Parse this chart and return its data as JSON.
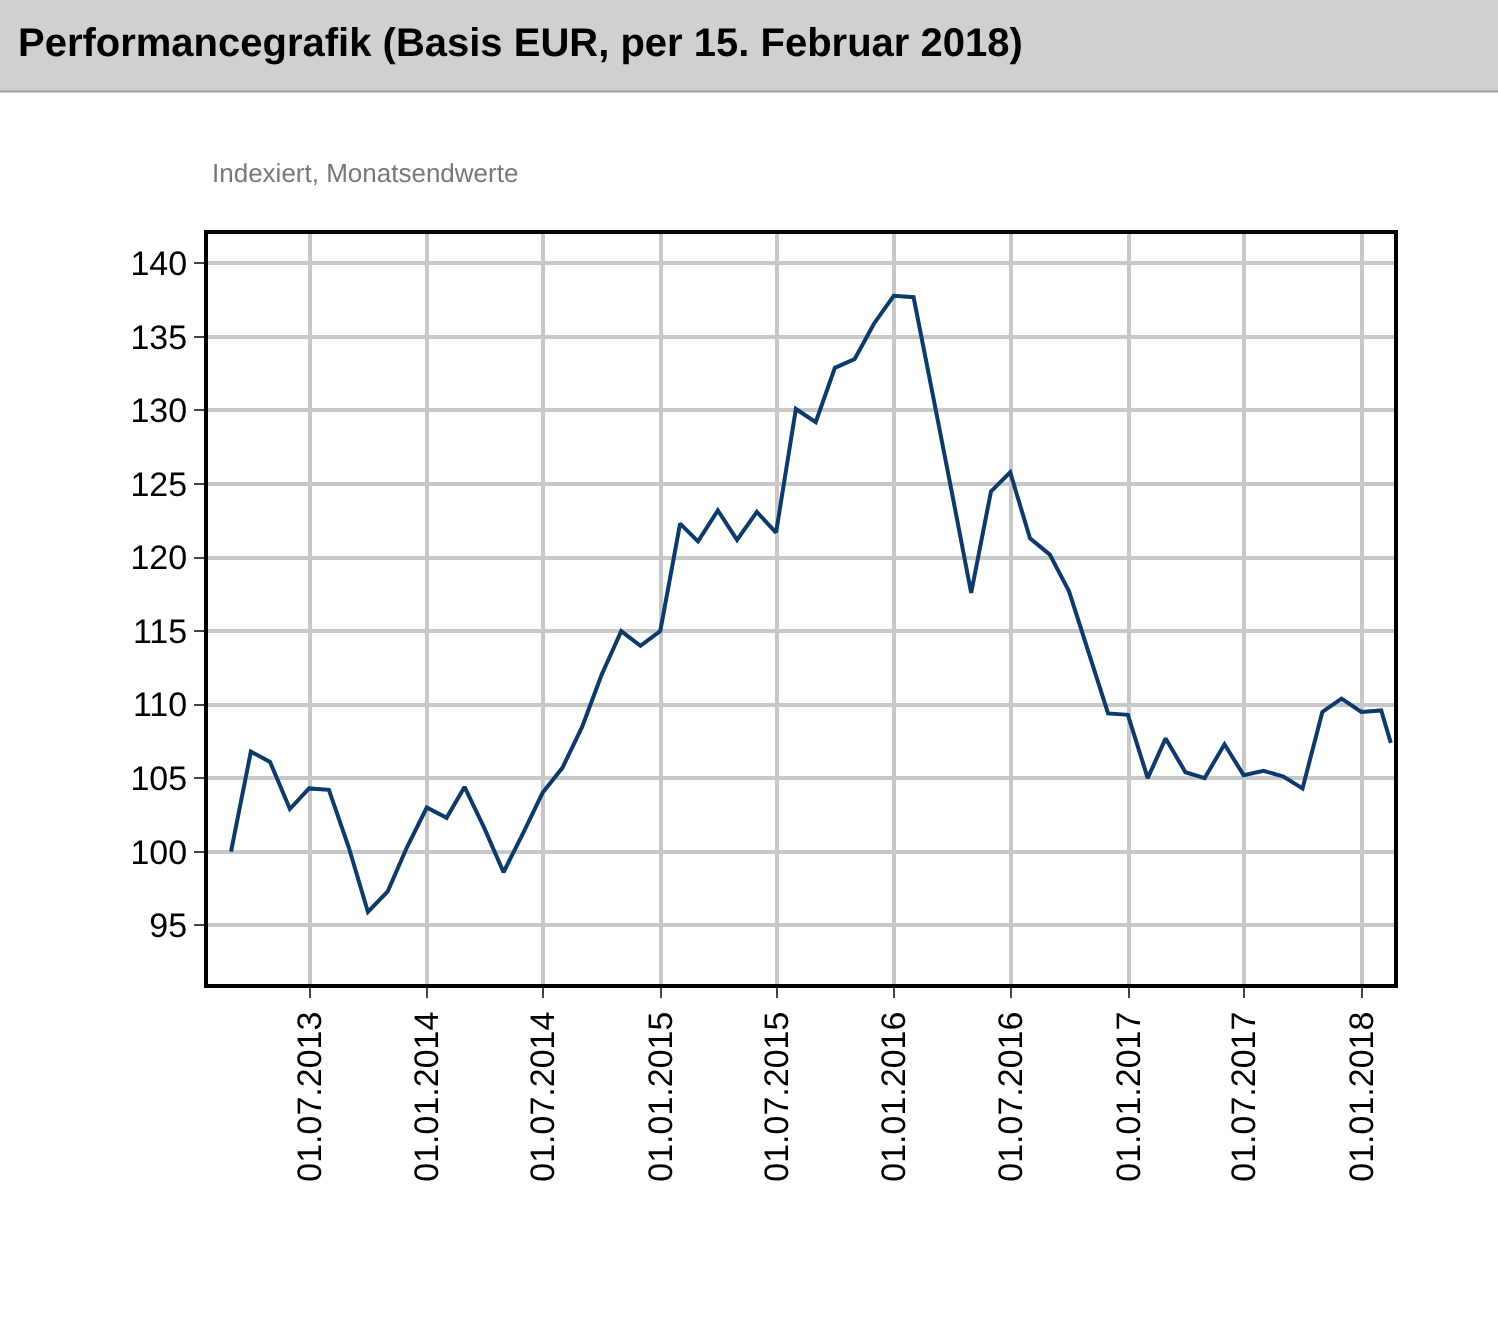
{
  "chart_data": {
    "type": "line",
    "title": "Performancegrafik (Basis EUR, per 15. Februar 2018)",
    "subtitle": "Indexiert, Monatsendwerte",
    "x": [
      "2013-02-28",
      "2013-03-31",
      "2013-04-30",
      "2013-05-31",
      "2013-06-30",
      "2013-07-31",
      "2013-08-31",
      "2013-09-30",
      "2013-10-31",
      "2013-11-30",
      "2013-12-31",
      "2014-01-31",
      "2014-02-28",
      "2014-03-31",
      "2014-04-30",
      "2014-05-31",
      "2014-06-30",
      "2014-07-31",
      "2014-08-31",
      "2014-09-30",
      "2014-10-31",
      "2014-11-30",
      "2014-12-31",
      "2015-01-31",
      "2015-02-28",
      "2015-03-31",
      "2015-04-30",
      "2015-05-31",
      "2015-06-30",
      "2015-07-31",
      "2015-08-31",
      "2015-09-30",
      "2015-10-31",
      "2015-11-30",
      "2015-12-31",
      "2016-01-31",
      "2016-02-29",
      "2016-03-31",
      "2016-04-30",
      "2016-05-31",
      "2016-06-30",
      "2016-07-31",
      "2016-08-31",
      "2016-09-30",
      "2016-10-31",
      "2016-11-30",
      "2016-12-31",
      "2017-01-31",
      "2017-02-28",
      "2017-03-31",
      "2017-04-30",
      "2017-05-31",
      "2017-06-30",
      "2017-07-31",
      "2017-08-31",
      "2017-09-30",
      "2017-10-31",
      "2017-11-30",
      "2017-12-31",
      "2018-01-31",
      "2018-02-15"
    ],
    "series": [
      {
        "color": "#0b3a6b",
        "values": [
          100.0,
          106.8,
          106.1,
          102.9,
          104.3,
          104.2,
          100.3,
          95.9,
          97.3,
          100.3,
          103.0,
          102.3,
          104.4,
          101.6,
          98.6,
          101.3,
          104.0,
          105.7,
          108.5,
          112.0,
          115.0,
          114.0,
          115.0,
          122.3,
          121.1,
          123.2,
          121.2,
          123.1,
          121.7,
          130.1,
          129.2,
          132.9,
          133.5,
          135.9,
          137.8,
          137.7,
          131.3,
          124.4,
          117.6,
          124.5,
          125.8,
          121.3,
          120.2,
          117.7,
          113.5,
          109.4,
          109.3,
          105.0,
          107.7,
          105.4,
          105.0,
          107.3,
          105.2,
          105.5,
          105.1,
          104.3,
          109.5,
          110.4,
          109.5,
          109.6,
          107.4
        ]
      }
    ],
    "xlim": [
      "2013-01-23",
      "2018-02-20"
    ],
    "xticks": [
      {
        "value": "2013-07-01",
        "label": "01.07.2013"
      },
      {
        "value": "2014-01-01",
        "label": "01.01.2014"
      },
      {
        "value": "2014-07-01",
        "label": "01.07.2014"
      },
      {
        "value": "2015-01-01",
        "label": "01.01.2015"
      },
      {
        "value": "2015-07-01",
        "label": "01.07.2015"
      },
      {
        "value": "2016-01-01",
        "label": "01.01.2016"
      },
      {
        "value": "2016-07-01",
        "label": "01.07.2016"
      },
      {
        "value": "2017-01-01",
        "label": "01.01.2017"
      },
      {
        "value": "2017-07-01",
        "label": "01.07.2017"
      },
      {
        "value": "2018-01-01",
        "label": "01.01.2018"
      }
    ],
    "ylim": [
      91,
      142
    ],
    "yticks": [
      95,
      100,
      105,
      110,
      115,
      120,
      125,
      130,
      135,
      140
    ],
    "grid": true,
    "legend": false,
    "marker": "none",
    "line_style": "solid"
  }
}
